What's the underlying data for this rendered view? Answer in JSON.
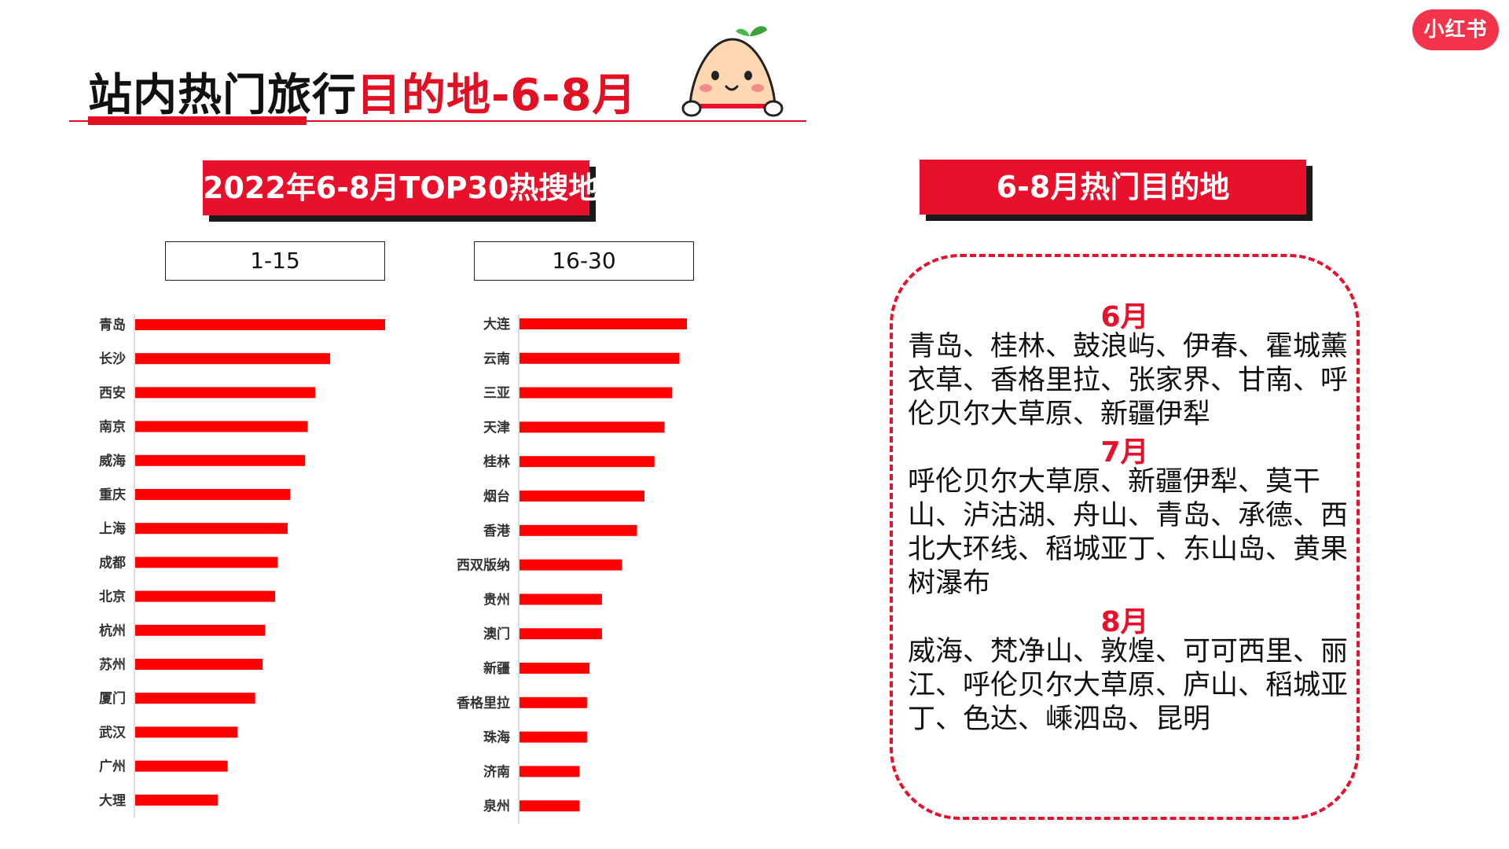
{
  "header": {
    "title_black": "站内热门旅行",
    "title_red": "目的地-6-8月",
    "logo_text": "小红书",
    "mascot_icon": "mascot-icon"
  },
  "left_panel": {
    "banner": "2022年6-8月TOP30热搜地",
    "ranges": [
      "1-15",
      "16-30"
    ]
  },
  "right_panel": {
    "banner": "6-8月热门目的地",
    "months": [
      {
        "label": "6月",
        "places": "青岛、桂林、鼓浪屿、伊春、霍城薰衣草、香格里拉、张家界、甘南、呼伦贝尔大草原、新疆伊犁"
      },
      {
        "label": "7月",
        "places": "呼伦贝尔大草原、新疆伊犁、莫干山、泸沽湖、舟山、青岛、承德、西北大环线、稻城亚丁、东山岛、黄果树瀑布"
      },
      {
        "label": "8月",
        "places": "威海、梵净山、敦煌、可可西里、丽江、呼伦贝尔大草原、庐山、稻城亚丁、色达、嵊泗岛、昆明"
      }
    ]
  },
  "colors": {
    "accent": "#e8102a",
    "bar": "#ff0000"
  },
  "chart_data": [
    {
      "type": "bar",
      "orientation": "horizontal",
      "categories": [
        "青岛",
        "长沙",
        "西安",
        "南京",
        "威海",
        "重庆",
        "上海",
        "成都",
        "北京",
        "杭州",
        "苏州",
        "厦门",
        "武汉",
        "广州",
        "大理"
      ],
      "values": [
        100,
        78,
        72,
        69,
        68,
        62,
        61,
        57,
        56,
        52,
        51,
        48,
        41,
        37,
        33
      ],
      "xlim": [
        0,
        100
      ]
    },
    {
      "type": "bar",
      "orientation": "horizontal",
      "categories": [
        "大连",
        "云南",
        "三亚",
        "天津",
        "桂林",
        "烟台",
        "香港",
        "西双版纳",
        "贵州",
        "澳门",
        "新疆",
        "香格里拉",
        "珠海",
        "济南",
        "泉州"
      ],
      "values": [
        67,
        64,
        61,
        58,
        54,
        50,
        47,
        41,
        33,
        33,
        28,
        27,
        27,
        24,
        24
      ],
      "xlim": [
        0,
        100
      ]
    }
  ]
}
